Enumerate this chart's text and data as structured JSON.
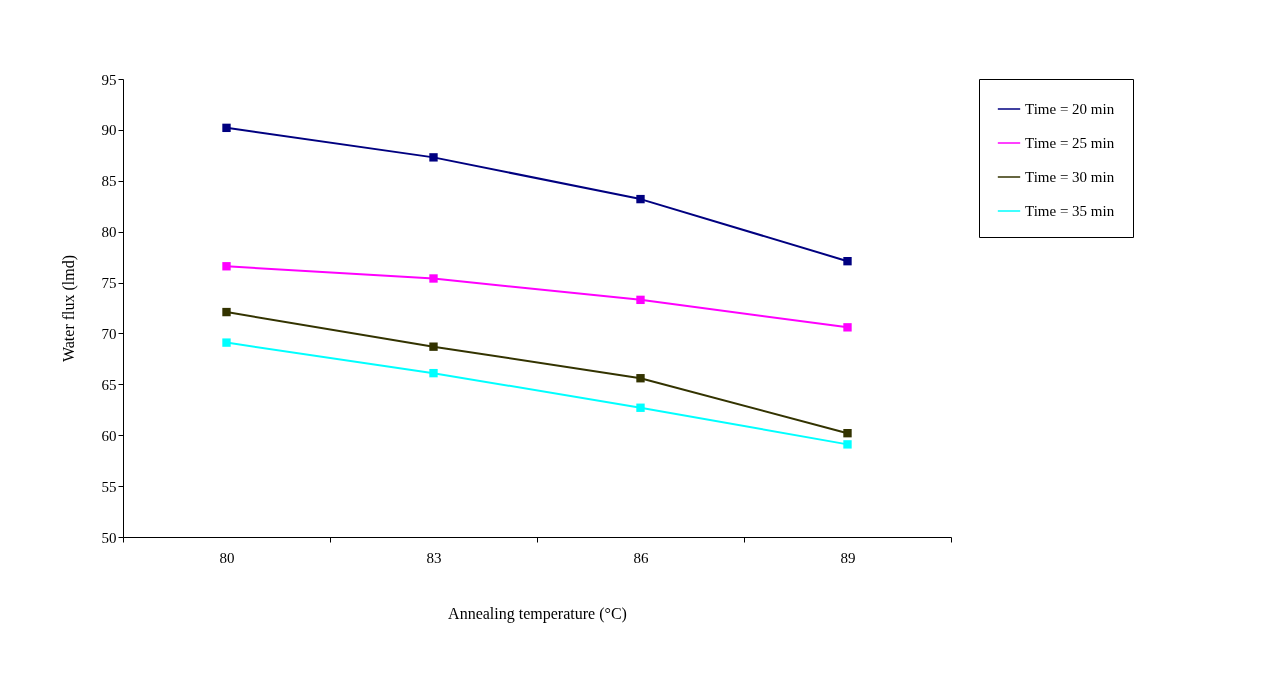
{
  "chart_data": {
    "type": "line",
    "xlabel": "Annealing temperature (°C)",
    "ylabel": "Water flux (lmd)",
    "categories": [
      "80",
      "83",
      "86",
      "89"
    ],
    "series": [
      {
        "name": "Time = 20 min",
        "color": "#000080",
        "values": [
          90.2,
          87.3,
          83.2,
          77.1
        ]
      },
      {
        "name": "Time = 25 min",
        "color": "#ff00ff",
        "values": [
          76.6,
          75.4,
          73.3,
          70.6
        ]
      },
      {
        "name": "Time = 30 min",
        "color": "#333300",
        "values": [
          72.1,
          68.7,
          65.6,
          60.2
        ]
      },
      {
        "name": "Time = 35 min",
        "color": "#00ffff",
        "values": [
          69.1,
          66.1,
          62.7,
          59.1
        ]
      }
    ],
    "ylim": [
      50,
      95
    ],
    "yticks": [
      50,
      55,
      60,
      65,
      70,
      75,
      80,
      85,
      90,
      95
    ],
    "grid": false,
    "legend": "right",
    "marker": "square",
    "line_style": "solid"
  }
}
